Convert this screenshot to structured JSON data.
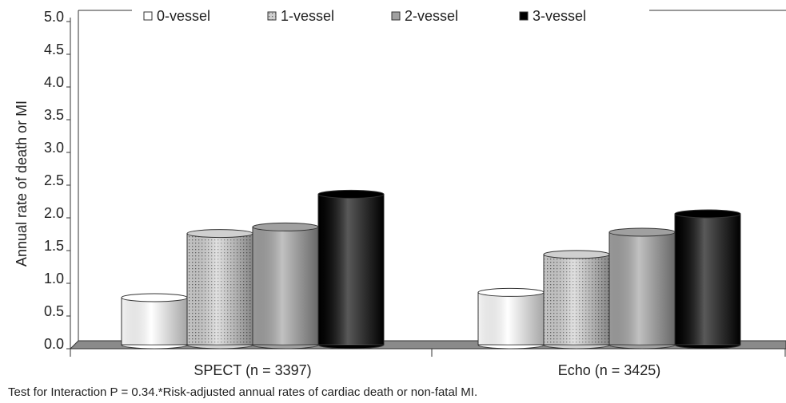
{
  "chart_data": {
    "type": "bar",
    "y_label": "Annual rate of death or MI",
    "categories": [
      "SPECT (n = 3397)",
      "Echo (n = 3425)"
    ],
    "series": [
      {
        "name": "0-vessel",
        "color": "#ffffff",
        "values": [
          0.72,
          0.8
        ]
      },
      {
        "name": "1-vessel",
        "color": "#d0d0d0",
        "values": [
          1.7,
          1.38
        ]
      },
      {
        "name": "2-vessel",
        "color": "#a0a0a0",
        "values": [
          1.8,
          1.72
        ]
      },
      {
        "name": "3-vessel",
        "color": "#000000",
        "values": [
          2.3,
          2.0
        ]
      }
    ],
    "ylim": [
      0,
      5
    ],
    "yticks": [
      {
        "value": 0,
        "label": "0.0"
      },
      0.5,
      {
        "value": 1,
        "label": "1.0"
      },
      1.5,
      {
        "value": 2,
        "label": "2.0"
      },
      2.5,
      {
        "value": 3,
        "label": "3.0"
      },
      3.5,
      {
        "value": 4,
        "label": "4.0"
      },
      4.5,
      {
        "value": 5,
        "label": "5.0"
      }
    ],
    "legend": "top",
    "note": "Test for Interaction P = 0.34.*Risk-adjusted annual rates of cardiac death or non-fatal MI."
  }
}
